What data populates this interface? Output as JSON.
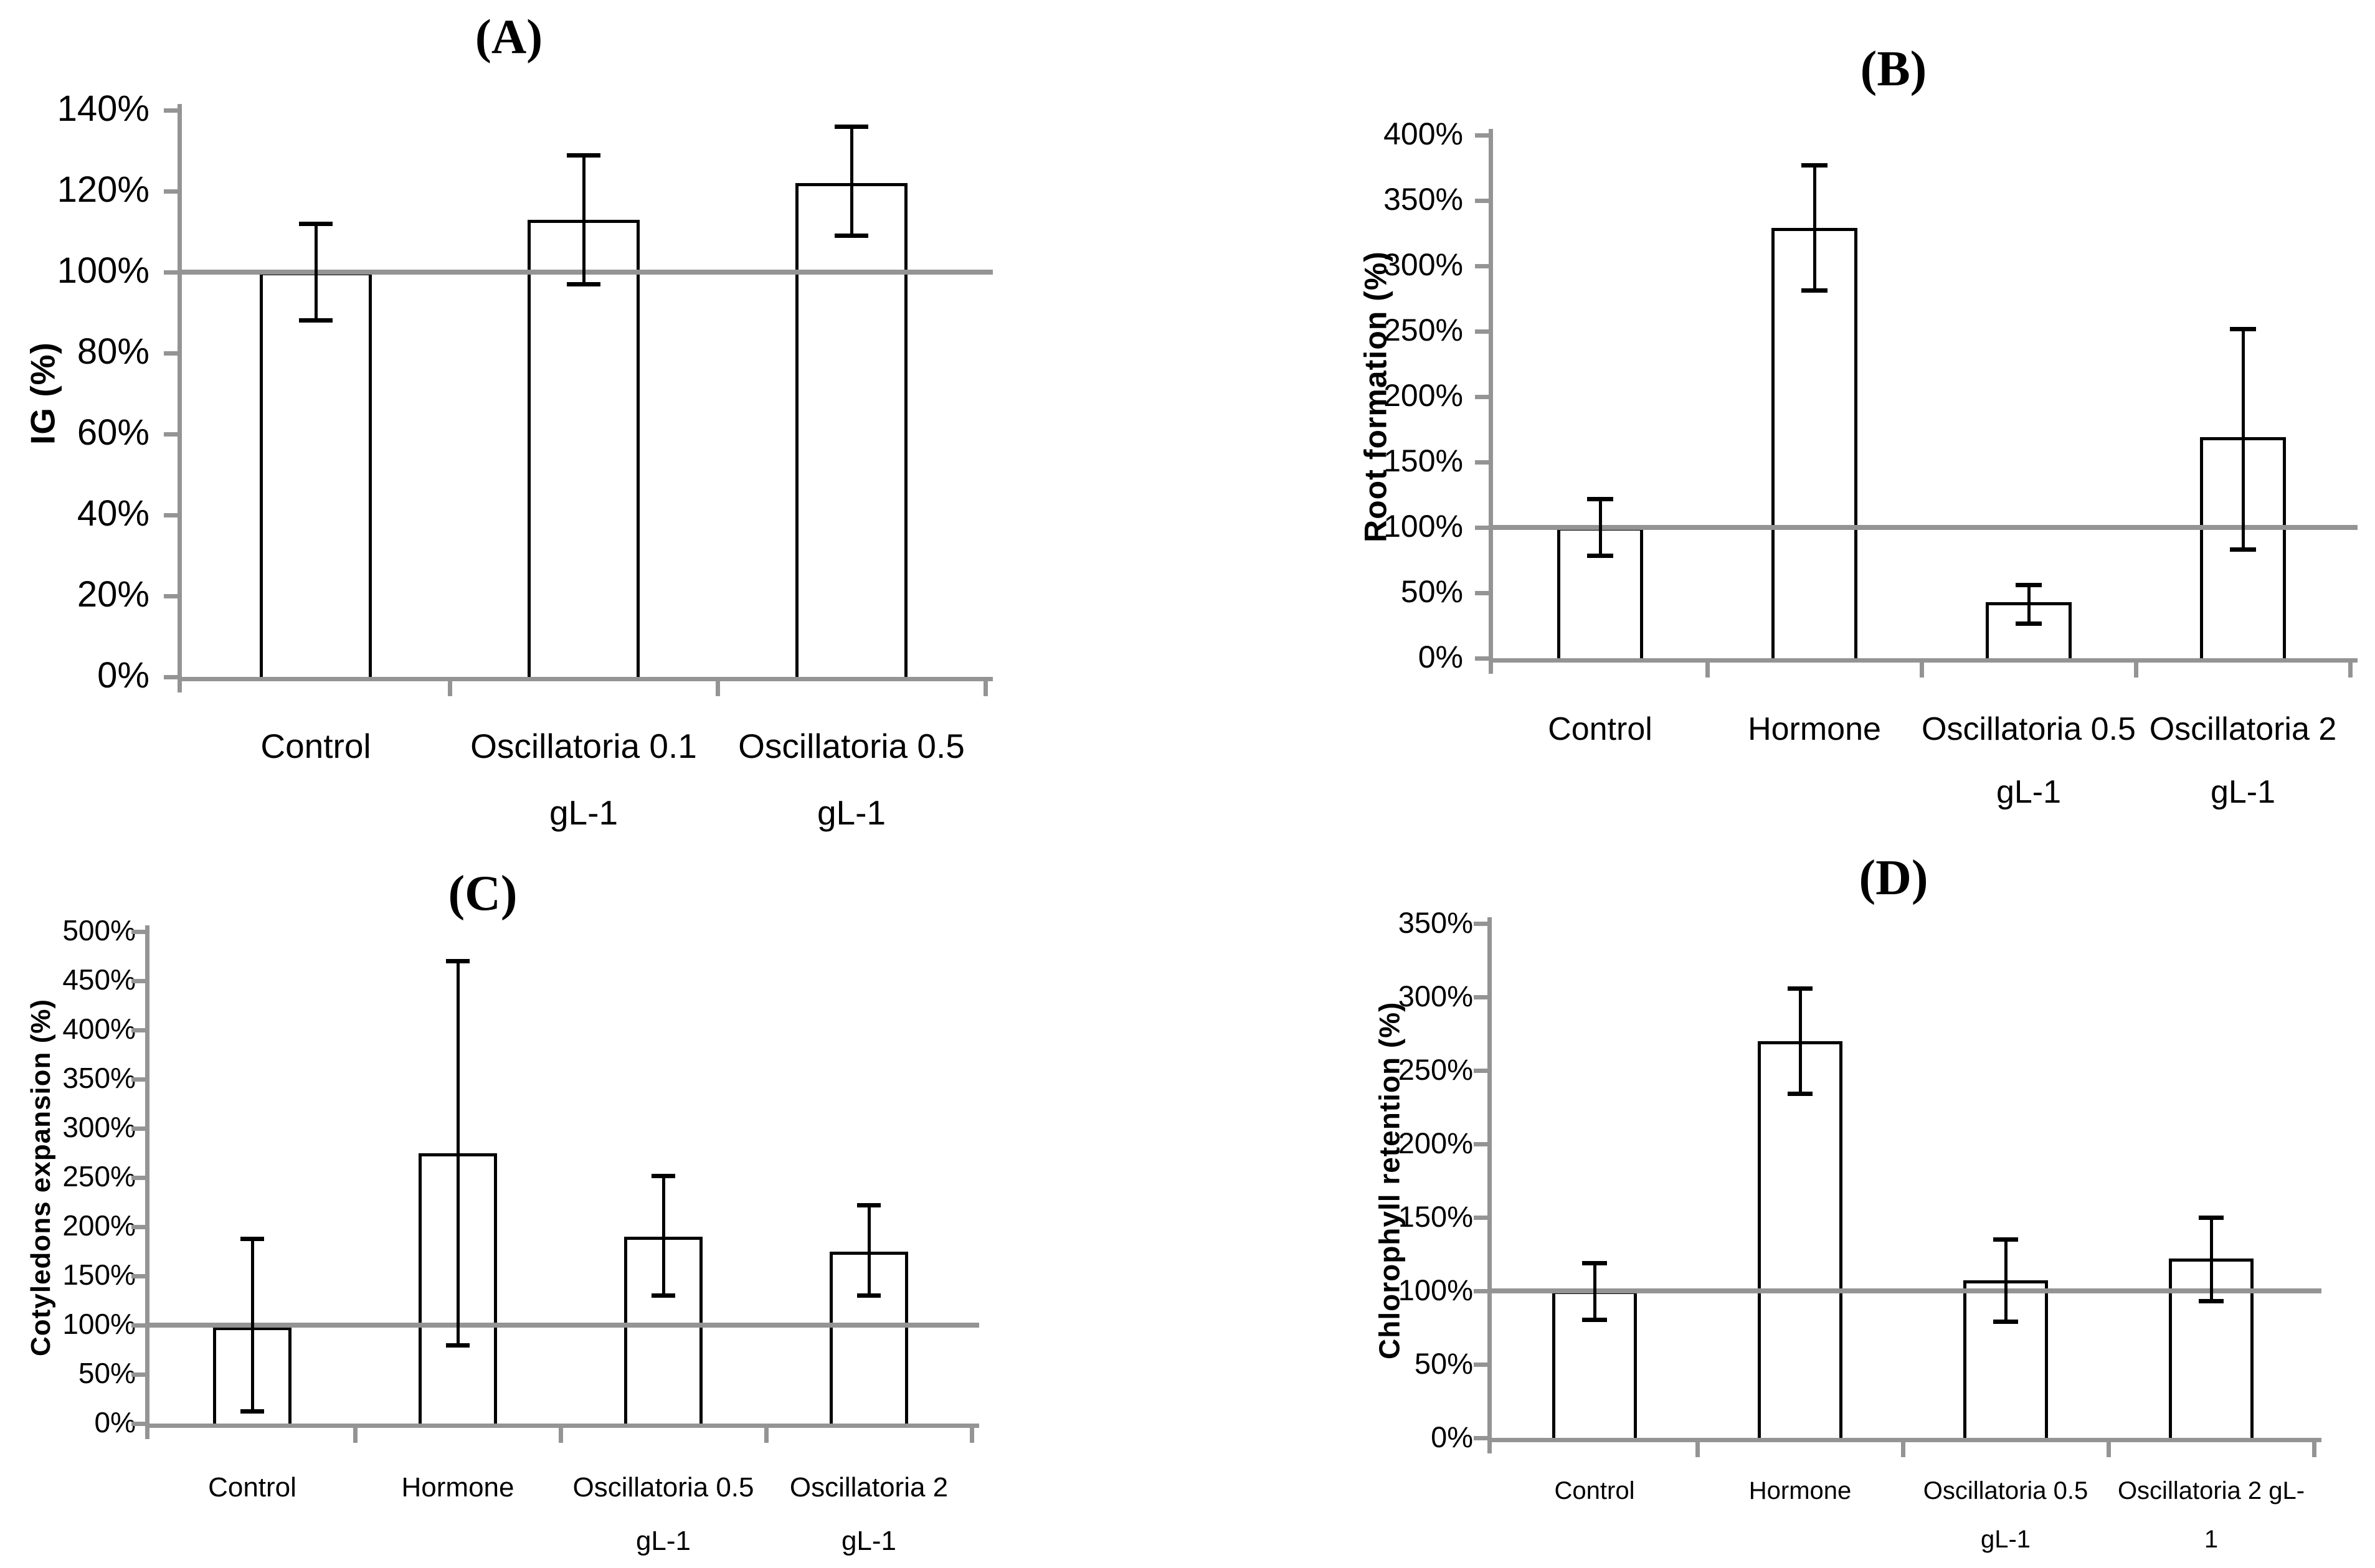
{
  "style": {
    "background": "#ffffff",
    "axis_color": "#949494",
    "bar_fill": "#ffffff",
    "bar_border": "#000000",
    "error_bar_color": "#000000",
    "text_color": "#000000"
  },
  "chart_data": [
    {
      "id": "A",
      "type": "bar",
      "title": "(A)",
      "ylabel": "IG (%)",
      "xlabel": "",
      "ylim": [
        0,
        140
      ],
      "ytick_step": 20,
      "ytick_labels": [
        "0%",
        "20%",
        "40%",
        "60%",
        "80%",
        "100%",
        "120%",
        "140%"
      ],
      "reference_line": 100,
      "grid": false,
      "legend": "none",
      "categories": [
        "Control",
        "Oscillatoria 0.1\ngL-1",
        "Oscillatoria 0.5\ngL-1"
      ],
      "values": [
        100,
        113,
        122
      ],
      "error_low": [
        88,
        97,
        109
      ],
      "error_high": [
        112,
        129,
        136
      ]
    },
    {
      "id": "B",
      "type": "bar",
      "title": "(B)",
      "ylabel": "Root formation (%)",
      "xlabel": "",
      "ylim": [
        0,
        400
      ],
      "ytick_step": 50,
      "ytick_labels": [
        "0%",
        "50%",
        "100%",
        "150%",
        "200%",
        "250%",
        "300%",
        "350%",
        "400%"
      ],
      "reference_line": 100,
      "grid": false,
      "legend": "none",
      "categories": [
        "Control",
        "Hormone",
        "Oscillatoria 0.5\ngL-1",
        "Oscillatoria 2\ngL-1"
      ],
      "values": [
        100,
        329,
        43,
        169
      ],
      "error_low": [
        78,
        281,
        26,
        83
      ],
      "error_high": [
        122,
        377,
        56,
        252
      ]
    },
    {
      "id": "C",
      "type": "bar",
      "title": "(C)",
      "ylabel": "Cotyledons expansion (%)",
      "xlabel": "",
      "ylim": [
        0,
        500
      ],
      "ytick_step": 50,
      "ytick_labels": [
        "0%",
        "50%",
        "100%",
        "150%",
        "200%",
        "250%",
        "300%",
        "350%",
        "400%",
        "450%",
        "500%"
      ],
      "reference_line": 100,
      "grid": false,
      "legend": "none",
      "categories": [
        "Control",
        "Hormone",
        "Oscillatoria 0.5\ngL-1",
        "Oscillatoria 2\ngL-1"
      ],
      "values": [
        98,
        275,
        190,
        175
      ],
      "error_low": [
        12,
        79,
        130,
        130
      ],
      "error_high": [
        188,
        470,
        252,
        222
      ]
    },
    {
      "id": "D",
      "type": "bar",
      "title": "(D)",
      "ylabel": "Chlorophyll retention (%)",
      "xlabel": "",
      "ylim": [
        0,
        350
      ],
      "ytick_step": 50,
      "ytick_labels": [
        "0%",
        "50%",
        "100%",
        "150%",
        "200%",
        "250%",
        "300%",
        "350%"
      ],
      "reference_line": 100,
      "grid": false,
      "legend": "none",
      "categories": [
        "Control",
        "Hormone",
        "Oscillatoria 0.5\ngL-1",
        "Oscillatoria 2 gL-\n1"
      ],
      "values": [
        100,
        270,
        107,
        122
      ],
      "error_low": [
        80,
        234,
        79,
        93
      ],
      "error_high": [
        119,
        306,
        135,
        150
      ]
    }
  ]
}
